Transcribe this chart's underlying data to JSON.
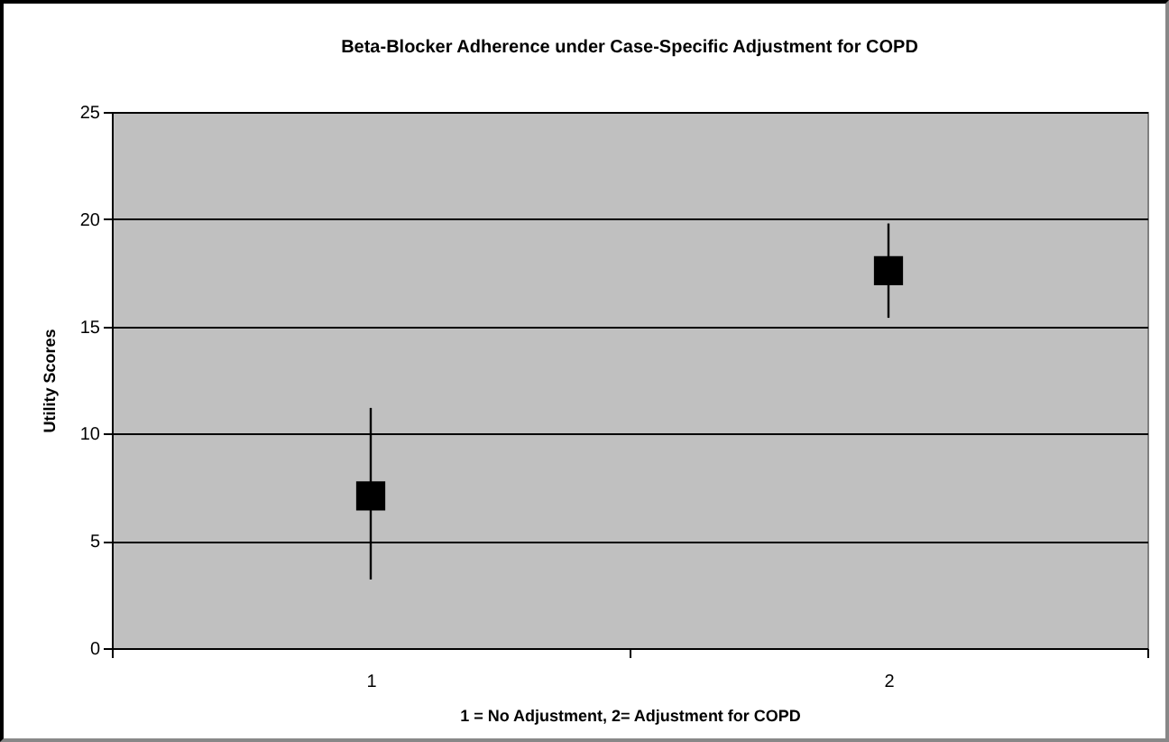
{
  "chart_data": {
    "type": "scatter",
    "title": "Beta-Blocker Adherence under Case-Specific Adjustment for COPD",
    "xlabel": "1 = No Adjustment, 2= Adjustment for COPD",
    "ylabel": "Utility Scores",
    "categories": [
      "1",
      "2"
    ],
    "series": [
      {
        "color": "#000000",
        "values": [
          7.1,
          17.6
        ],
        "errors": [
          [
            3.2,
            11.2
          ],
          [
            15.4,
            19.8
          ]
        ]
      }
    ],
    "ylim": [
      0,
      25
    ],
    "yticks": [
      0,
      5,
      10,
      15,
      20,
      25
    ],
    "grid": "y",
    "marker": "square",
    "legend": false
  }
}
